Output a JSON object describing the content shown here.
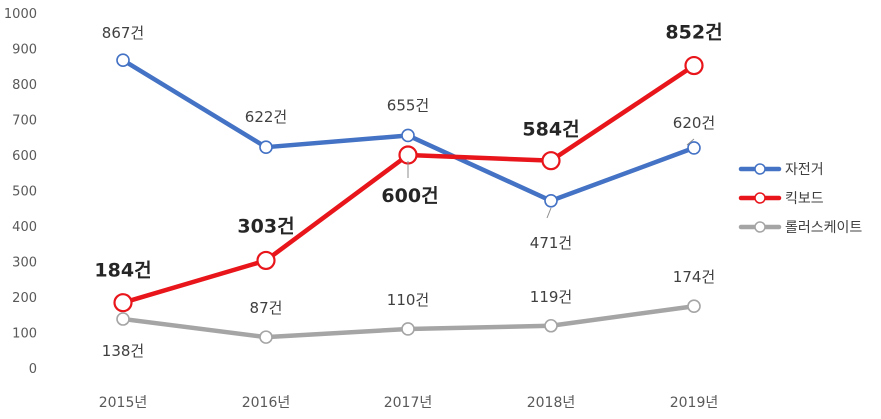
{
  "chart_data": {
    "type": "line",
    "title": "",
    "xlabel": "",
    "ylabel": "",
    "categories": [
      "2015년",
      "2016년",
      "2017년",
      "2018년",
      "2019년"
    ],
    "ylim": [
      0,
      1000
    ],
    "yticks": [
      "0",
      "100",
      "200",
      "300",
      "400",
      "500",
      "600",
      "700",
      "800",
      "900",
      "1000"
    ],
    "grid": false,
    "legend_position": "right",
    "series": [
      {
        "name": "자전거",
        "color": "#4472C4",
        "values": [
          867,
          622,
          655,
          471,
          620
        ],
        "labels": [
          "867건",
          "622건",
          "655건",
          "471건",
          "620건"
        ],
        "bold_labels": false
      },
      {
        "name": "킥보드",
        "color": "#E8151B",
        "values": [
          184,
          303,
          600,
          584,
          852
        ],
        "labels": [
          "184건",
          "303건",
          "600건",
          "584건",
          "852건"
        ],
        "bold_labels": true
      },
      {
        "name": "롤러스케이트",
        "color": "#A5A5A5",
        "values": [
          138,
          87,
          110,
          119,
          174
        ],
        "labels": [
          "138건",
          "87건",
          "110건",
          "119건",
          "174건"
        ],
        "bold_labels": false
      }
    ]
  }
}
